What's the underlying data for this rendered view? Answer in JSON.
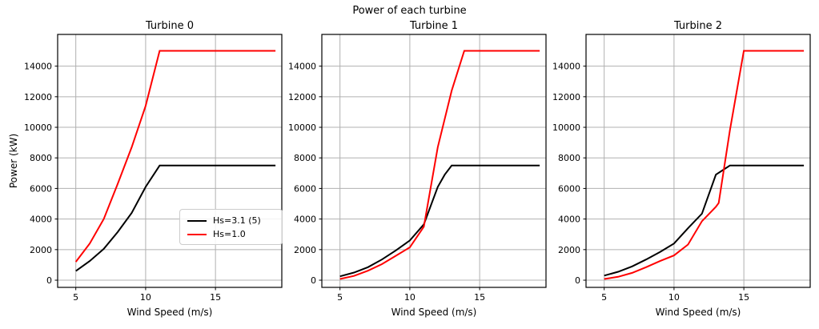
{
  "figure": {
    "suptitle": "Power of each turbine",
    "background": "#ffffff",
    "grid_color": "#b0b0b0",
    "spine_color": "#000000",
    "text_color": "#000000"
  },
  "chart_data": [
    {
      "type": "line",
      "title": "Turbine 0",
      "xlabel": "Wind Speed (m/s)",
      "ylabel": "Power (kW)",
      "xticks": [
        5,
        10,
        15
      ],
      "yticks": [
        0,
        2000,
        4000,
        6000,
        8000,
        10000,
        12000,
        14000
      ],
      "xlim": [
        3.7,
        19.75
      ],
      "ylim": [
        -470,
        16075
      ],
      "grid": true,
      "legend": {
        "position": "lower right",
        "entries": [
          {
            "label": "Hs=3.1 (5)",
            "color": "#000000"
          },
          {
            "label": "Hs=1.0",
            "color": "#ff0000"
          }
        ]
      },
      "series": [
        {
          "name": "Hs=3.1 (5)",
          "color": "#000000",
          "points": [
            [
              5,
              600
            ],
            [
              6,
              1250
            ],
            [
              7,
              2050
            ],
            [
              8,
              3150
            ],
            [
              9,
              4400
            ],
            [
              10,
              6100
            ],
            [
              11,
              7500
            ],
            [
              19.3,
              7500
            ]
          ]
        },
        {
          "name": "Hs=1.0",
          "color": "#ff0000",
          "points": [
            [
              5,
              1200
            ],
            [
              6,
              2400
            ],
            [
              7,
              4000
            ],
            [
              8,
              6300
            ],
            [
              9,
              8700
            ],
            [
              10,
              11400
            ],
            [
              11,
              15000
            ],
            [
              19.3,
              15000
            ]
          ]
        }
      ]
    },
    {
      "type": "line",
      "title": "Turbine 1",
      "xlabel": "Wind Speed (m/s)",
      "ylabel": "",
      "xticks": [
        5,
        10,
        15
      ],
      "yticks": [
        0,
        2000,
        4000,
        6000,
        8000,
        10000,
        12000,
        14000
      ],
      "xlim": [
        3.7,
        19.75
      ],
      "ylim": [
        -470,
        16075
      ],
      "grid": true,
      "series": [
        {
          "name": "Hs=3.1 (5)",
          "color": "#000000",
          "points": [
            [
              5,
              250
            ],
            [
              6,
              500
            ],
            [
              7,
              850
            ],
            [
              8,
              1350
            ],
            [
              9,
              1950
            ],
            [
              10,
              2600
            ],
            [
              11,
              3650
            ],
            [
              12,
              6100
            ],
            [
              12.5,
              6900
            ],
            [
              13,
              7500
            ],
            [
              19.3,
              7500
            ]
          ]
        },
        {
          "name": "Hs=1.0",
          "color": "#ff0000",
          "points": [
            [
              5,
              80
            ],
            [
              6,
              280
            ],
            [
              7,
              620
            ],
            [
              8,
              1050
            ],
            [
              9,
              1600
            ],
            [
              10,
              2150
            ],
            [
              11,
              3500
            ],
            [
              12,
              8700
            ],
            [
              13,
              12400
            ],
            [
              13.9,
              15000
            ],
            [
              19.3,
              15000
            ]
          ]
        }
      ]
    },
    {
      "type": "line",
      "title": "Turbine 2",
      "xlabel": "Wind Speed (m/s)",
      "ylabel": "",
      "xticks": [
        5,
        10,
        15
      ],
      "yticks": [
        0,
        2000,
        4000,
        6000,
        8000,
        10000,
        12000,
        14000
      ],
      "xlim": [
        3.7,
        19.75
      ],
      "ylim": [
        -470,
        16075
      ],
      "grid": true,
      "series": [
        {
          "name": "Hs=3.1 (5)",
          "color": "#000000",
          "points": [
            [
              5,
              300
            ],
            [
              6,
              550
            ],
            [
              7,
              900
            ],
            [
              8,
              1350
            ],
            [
              9,
              1850
            ],
            [
              10,
              2400
            ],
            [
              11,
              3400
            ],
            [
              12,
              4350
            ],
            [
              13,
              6900
            ],
            [
              14,
              7500
            ],
            [
              19.3,
              7500
            ]
          ]
        },
        {
          "name": "Hs=1.0",
          "color": "#ff0000",
          "points": [
            [
              5,
              80
            ],
            [
              6,
              220
            ],
            [
              7,
              480
            ],
            [
              8,
              850
            ],
            [
              9,
              1250
            ],
            [
              10,
              1620
            ],
            [
              11,
              2330
            ],
            [
              12,
              3860
            ],
            [
              13,
              4800
            ],
            [
              13.2,
              5050
            ],
            [
              14,
              9800
            ],
            [
              15,
              15000
            ],
            [
              19.3,
              15000
            ]
          ]
        }
      ]
    }
  ]
}
